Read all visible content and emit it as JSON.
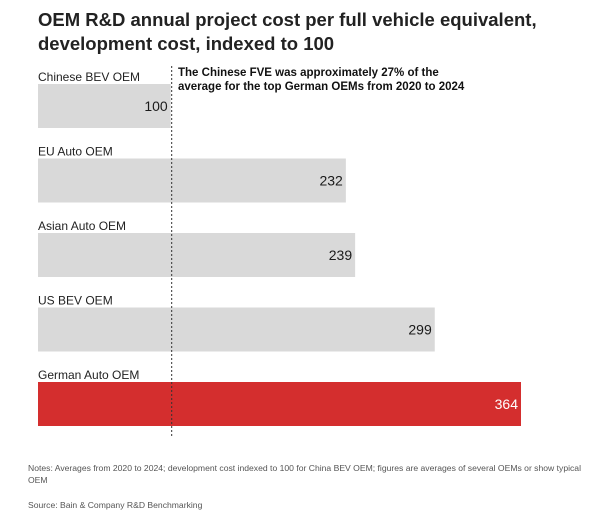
{
  "title_lines": [
    "OEM R&D annual project cost per full vehicle equivalent,",
    "development cost, indexed to 100"
  ],
  "annotation": {
    "line1_pre": "The Chinese ",
    "line1_bold": "FVE",
    "line1_post": " was approximately 27% of the",
    "line2": "average for the top German OEMs from 2020 to 2024"
  },
  "notes": "Notes: Averages from 2020 to 2024; development cost indexed to 100 for China BEV OEM; figures are averages of several OEMs or show typical OEM",
  "source": "Source: Bain & Company R&D Benchmarking",
  "colors": {
    "bar_default": "#d9d9d9",
    "bar_highlight": "#d42e2e",
    "label_default": "#1a1a1a",
    "label_highlight": "#ffffff",
    "reference_line": "#333333"
  },
  "chart_data": {
    "type": "bar",
    "orientation": "horizontal",
    "categories": [
      "Chinese BEV OEM",
      "EU Auto OEM",
      "Asian Auto OEM",
      "US BEV OEM",
      "German Auto OEM"
    ],
    "values": [
      100,
      232,
      239,
      299,
      364
    ],
    "value_labels": [
      "100",
      "232",
      "239",
      "299",
      "364"
    ],
    "highlight_index": 4,
    "reference_line": {
      "value": 100,
      "style": "dotted"
    },
    "xlim": [
      0,
      364
    ],
    "grid": false,
    "legend": "none"
  }
}
